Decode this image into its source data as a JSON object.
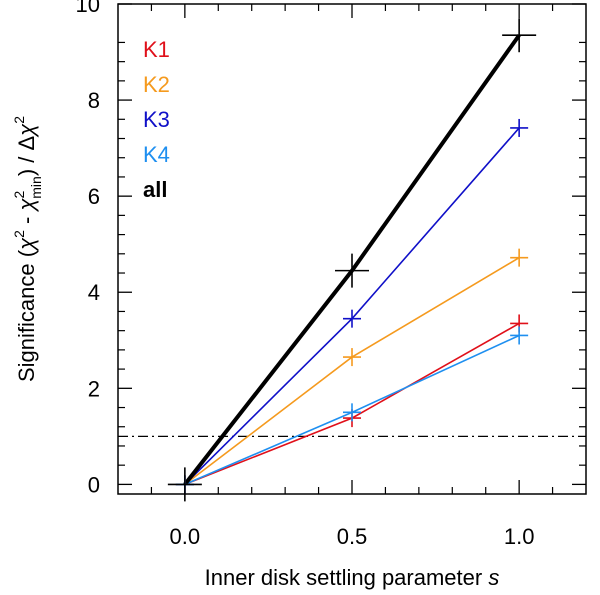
{
  "chart_data": {
    "type": "line",
    "xlabel": {
      "main": "Inner disk settling parameter ",
      "italic": "s"
    },
    "ylabel": {
      "prefix": "Significance (",
      "chi": "χ",
      "sup2": "2",
      "minus": " - ",
      "min": "min",
      "suffix": ") / Δ"
    },
    "xlim": [
      -0.2,
      1.2
    ],
    "ylim": [
      -0.2,
      10.0
    ],
    "xticks": [
      "0.0",
      "0.5",
      "1.0"
    ],
    "yticks": [
      "0",
      "2",
      "4",
      "6",
      "8",
      "10"
    ],
    "x": [
      0.0,
      0.5,
      1.0
    ],
    "threshold": 1.0,
    "series": [
      {
        "name": "K1",
        "color": "#e0101a",
        "values": [
          0.0,
          1.38,
          3.35
        ],
        "width": "thin",
        "marker": "small"
      },
      {
        "name": "K2",
        "color": "#f59a1e",
        "values": [
          0.0,
          2.65,
          4.72
        ],
        "width": "thin",
        "marker": "small"
      },
      {
        "name": "K3",
        "color": "#1010c8",
        "values": [
          0.0,
          3.45,
          7.42
        ],
        "width": "thin",
        "marker": "small"
      },
      {
        "name": "K4",
        "color": "#1e8ff0",
        "values": [
          0.0,
          1.5,
          3.1
        ],
        "width": "thin",
        "marker": "small"
      },
      {
        "name": "all",
        "color": "#000000",
        "values": [
          0.0,
          4.45,
          9.35
        ],
        "width": "thick",
        "marker": "large"
      }
    ],
    "legend_placement": "top-left",
    "grid": false
  }
}
